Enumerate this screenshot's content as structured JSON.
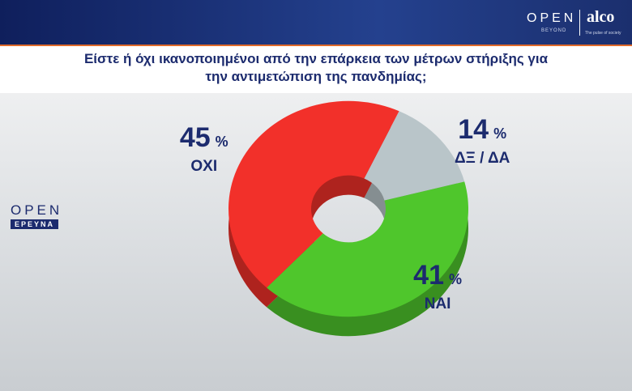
{
  "header": {
    "brand": "OPEN",
    "brand_sub": "BEYOND",
    "partner": "alco",
    "partner_sub": "The pulse of society"
  },
  "side_logo": {
    "brand": "OPEN",
    "sub": "ΕΡΕΥΝΑ"
  },
  "chart_data": {
    "type": "pie",
    "title": "Είστε ή όχι ικανοποιημένοι από την επάρκεια των μέτρων στήριξης για την αντιμετώπιση της πανδημίας;",
    "categories": [
      "ΔΞ / ΔΑ",
      "ΝΑΙ",
      "ΟΧΙ"
    ],
    "values": [
      14,
      41,
      45
    ],
    "unit": "%",
    "colors": [
      "#b9c5c9",
      "#4fc62c",
      "#f2302a"
    ],
    "donut": true
  }
}
